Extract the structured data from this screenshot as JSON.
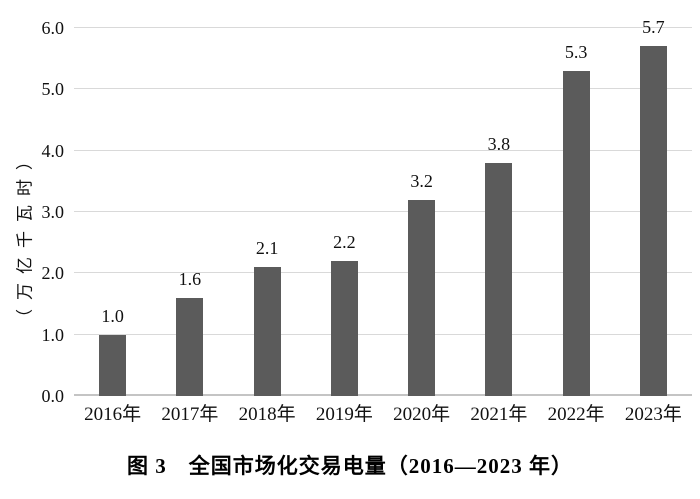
{
  "figure": {
    "caption": "图 3　全国市场化交易电量（2016—2023 年）"
  },
  "chart_data": {
    "type": "bar",
    "title": "图 3　全国市场化交易电量（2016—2023 年）",
    "categories": [
      "2016年",
      "2017年",
      "2018年",
      "2019年",
      "2020年",
      "2021年",
      "2022年",
      "2023年"
    ],
    "values": [
      1.0,
      1.6,
      2.1,
      2.2,
      3.2,
      3.8,
      5.3,
      5.7
    ],
    "value_labels": [
      "1.0",
      "1.6",
      "2.1",
      "2.2",
      "3.2",
      "3.8",
      "5.3",
      "5.7"
    ],
    "xlabel": "",
    "ylabel": "（万亿千瓦时）",
    "ylim": [
      0,
      6.0
    ],
    "y_ticks": [
      "0.0",
      "1.0",
      "2.0",
      "3.0",
      "4.0",
      "5.0",
      "6.0"
    ],
    "grid": "horizontal gridlines only",
    "legend": "none",
    "bar_color": "#5b5b5b",
    "gridline_color": "#d9d9d9",
    "baseline_color": "#c4c4c4",
    "text_color": "#111111",
    "background_color": "#ffffff"
  }
}
